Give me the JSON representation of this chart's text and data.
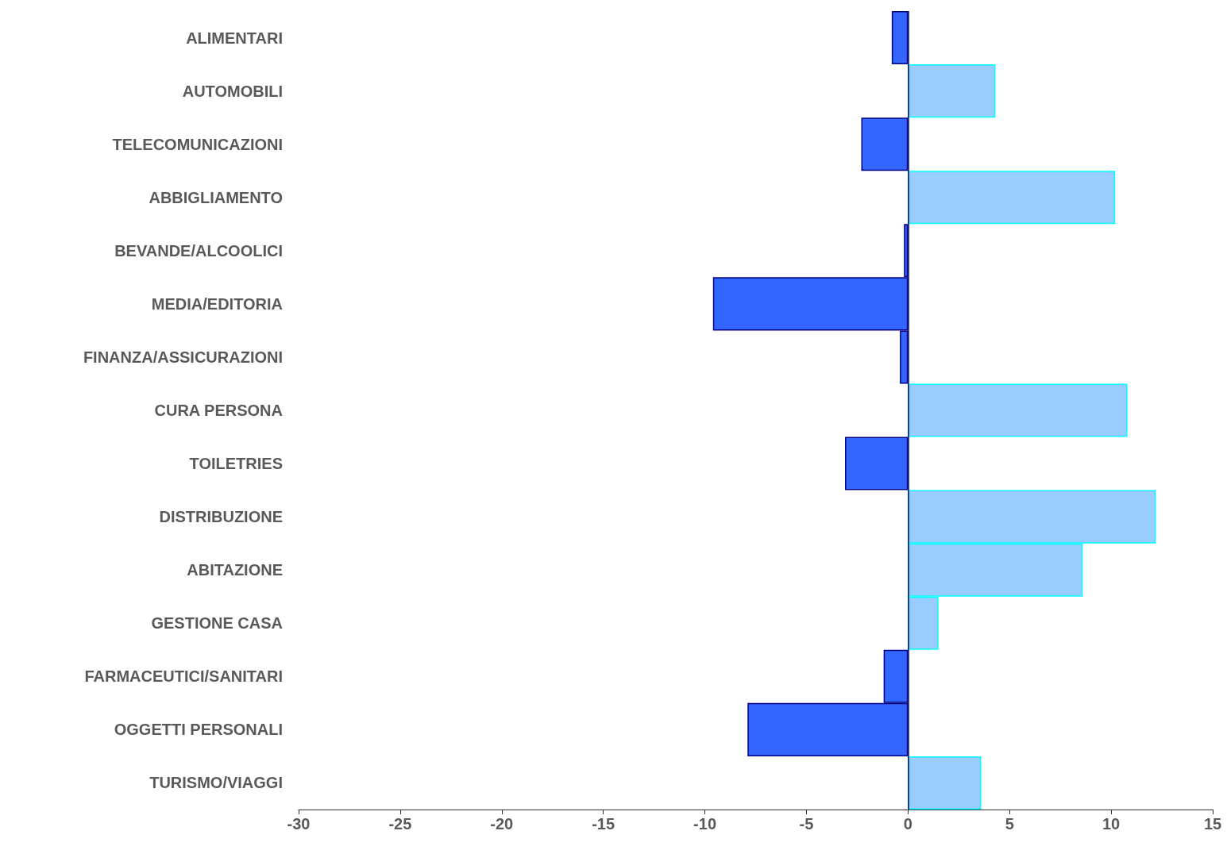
{
  "chart_data": {
    "type": "bar",
    "orientation": "horizontal",
    "categories": [
      "ALIMENTARI",
      "AUTOMOBILI",
      "TELECOMUNICAZIONI",
      "ABBIGLIAMENTO",
      "BEVANDE/ALCOOLICI",
      "MEDIA/EDITORIA",
      "FINANZA/ASSICURAZIONI",
      "CURA PERSONA",
      "TOILETRIES",
      "DISTRIBUZIONE",
      "ABITAZIONE",
      "GESTIONE CASA",
      "FARMACEUTICI/SANITARI",
      "OGGETTI PERSONALI",
      "TURISMO/VIAGGI"
    ],
    "values": [
      -0.8,
      4.3,
      -2.3,
      10.2,
      -0.2,
      -9.6,
      -0.4,
      10.8,
      -3.1,
      12.2,
      8.6,
      1.5,
      -1.2,
      -7.9,
      3.6
    ],
    "colors": [
      "#3366ff",
      "#99ccff",
      "#3366ff",
      "#99ccff",
      "#3366ff",
      "#3366ff",
      "#3366ff",
      "#99ccff",
      "#3366ff",
      "#99ccff",
      "#99ccff",
      "#99ccff",
      "#3366ff",
      "#3366ff",
      "#99ccff"
    ],
    "xlim": [
      -30,
      15
    ],
    "xticks": [
      -30,
      -25,
      -20,
      -15,
      -10,
      -5,
      0,
      5,
      10,
      15
    ],
    "grid": false,
    "ref_lines": [
      {
        "axis": "x",
        "value": 0,
        "color": "#000080"
      }
    ]
  }
}
